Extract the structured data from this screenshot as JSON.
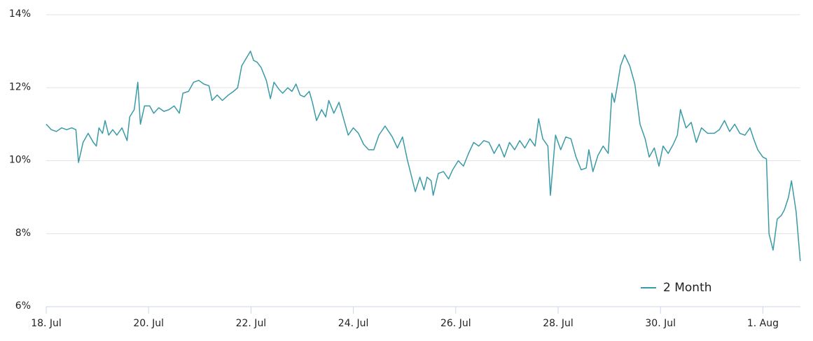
{
  "chart_data": {
    "type": "line",
    "x": [
      0,
      0.1,
      0.2,
      0.3,
      0.4,
      0.5,
      0.58,
      0.63,
      0.72,
      0.82,
      0.92,
      0.98,
      1.03,
      1.1,
      1.15,
      1.22,
      1.3,
      1.38,
      1.48,
      1.58,
      1.63,
      1.72,
      1.79,
      1.84,
      1.92,
      2.02,
      2.1,
      2.2,
      2.3,
      2.4,
      2.5,
      2.6,
      2.67,
      2.78,
      2.88,
      2.98,
      3.08,
      3.18,
      3.24,
      3.34,
      3.44,
      3.56,
      3.66,
      3.74,
      3.82,
      3.99,
      4.05,
      4.12,
      4.2,
      4.3,
      4.38,
      4.45,
      4.55,
      4.62,
      4.72,
      4.8,
      4.88,
      4.96,
      5.04,
      5.14,
      5.2,
      5.28,
      5.38,
      5.46,
      5.52,
      5.62,
      5.72,
      5.82,
      5.9,
      6.0,
      6.1,
      6.2,
      6.3,
      6.4,
      6.5,
      6.62,
      6.76,
      6.86,
      6.96,
      7.05,
      7.14,
      7.21,
      7.3,
      7.38,
      7.44,
      7.52,
      7.56,
      7.66,
      7.76,
      7.86,
      7.94,
      8.05,
      8.15,
      8.25,
      8.35,
      8.45,
      8.55,
      8.65,
      8.75,
      8.85,
      8.95,
      9.05,
      9.15,
      9.25,
      9.35,
      9.45,
      9.55,
      9.62,
      9.7,
      9.8,
      9.85,
      9.95,
      10.05,
      10.15,
      10.25,
      10.35,
      10.45,
      10.55,
      10.6,
      10.68,
      10.78,
      10.88,
      10.98,
      11.05,
      11.1,
      11.15,
      11.22,
      11.3,
      11.4,
      11.5,
      11.6,
      11.7,
      11.78,
      11.88,
      11.97,
      12.05,
      12.15,
      12.25,
      12.33,
      12.39,
      12.5,
      12.6,
      12.7,
      12.8,
      12.92,
      13.05,
      13.15,
      13.25,
      13.35,
      13.45,
      13.55,
      13.65,
      13.75,
      13.82,
      13.9,
      14.0,
      14.07,
      14.12,
      14.2,
      14.28,
      14.36,
      14.42,
      14.5,
      14.56,
      14.65,
      14.73
    ],
    "series": [
      {
        "name": "2 Month",
        "color": "#3a9aa6",
        "values": [
          11.0,
          10.85,
          10.8,
          10.9,
          10.85,
          10.9,
          10.85,
          9.95,
          10.5,
          10.75,
          10.5,
          10.4,
          10.9,
          10.75,
          11.1,
          10.7,
          10.85,
          10.7,
          10.9,
          10.55,
          11.2,
          11.4,
          12.15,
          11.0,
          11.5,
          11.5,
          11.3,
          11.45,
          11.35,
          11.4,
          11.5,
          11.3,
          11.85,
          11.9,
          12.15,
          12.2,
          12.1,
          12.05,
          11.65,
          11.8,
          11.65,
          11.8,
          11.9,
          12.0,
          12.6,
          13.0,
          12.75,
          12.7,
          12.55,
          12.2,
          11.7,
          12.15,
          11.95,
          11.85,
          12.0,
          11.9,
          12.1,
          11.8,
          11.75,
          11.9,
          11.6,
          11.1,
          11.4,
          11.2,
          11.65,
          11.3,
          11.6,
          11.1,
          10.7,
          10.9,
          10.75,
          10.45,
          10.3,
          10.3,
          10.7,
          10.95,
          10.65,
          10.35,
          10.65,
          10.05,
          9.55,
          9.15,
          9.55,
          9.2,
          9.55,
          9.45,
          9.05,
          9.65,
          9.7,
          9.5,
          9.75,
          10.0,
          9.85,
          10.2,
          10.5,
          10.4,
          10.55,
          10.5,
          10.2,
          10.45,
          10.1,
          10.5,
          10.3,
          10.55,
          10.35,
          10.6,
          10.4,
          11.15,
          10.6,
          10.4,
          9.05,
          10.7,
          10.3,
          10.65,
          10.6,
          10.1,
          9.75,
          9.8,
          10.3,
          9.7,
          10.15,
          10.4,
          10.2,
          11.85,
          11.6,
          12.0,
          12.6,
          12.9,
          12.6,
          12.1,
          11.0,
          10.6,
          10.1,
          10.35,
          9.85,
          10.4,
          10.2,
          10.45,
          10.7,
          11.4,
          10.9,
          11.05,
          10.5,
          10.9,
          10.75,
          10.75,
          10.85,
          11.1,
          10.8,
          11.0,
          10.75,
          10.7,
          10.9,
          10.6,
          10.3,
          10.1,
          10.05,
          8.0,
          7.55,
          8.4,
          8.5,
          8.65,
          9.0,
          9.45,
          8.6,
          7.25
        ]
      }
    ],
    "xlim": [
      0,
      14.73
    ],
    "xticks": [
      {
        "value": 0,
        "label": "18. Jul"
      },
      {
        "value": 2,
        "label": "20. Jul"
      },
      {
        "value": 4,
        "label": "22. Jul"
      },
      {
        "value": 6,
        "label": "24. Jul"
      },
      {
        "value": 8,
        "label": "26. Jul"
      },
      {
        "value": 10,
        "label": "28. Jul"
      },
      {
        "value": 12,
        "label": "30. Jul"
      },
      {
        "value": 14,
        "label": "1. Aug"
      }
    ],
    "ylim": [
      6,
      14
    ],
    "yticks": [
      {
        "value": 6,
        "label": "6%"
      },
      {
        "value": 8,
        "label": "8%"
      },
      {
        "value": 10,
        "label": "10%"
      },
      {
        "value": 12,
        "label": "12%"
      },
      {
        "value": 14,
        "label": "14%"
      }
    ],
    "grid": true,
    "legend": "lower right"
  }
}
